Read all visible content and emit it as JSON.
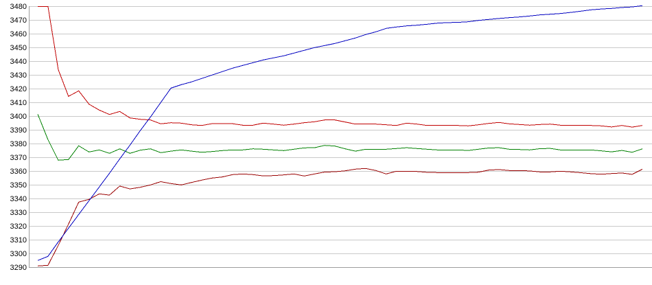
{
  "chart_data": {
    "type": "line",
    "title": "",
    "xlabel": "",
    "ylabel": "",
    "grid": true,
    "legend": false,
    "background_color": "#ffffff",
    "gridline_color": "#c9c9c9",
    "axis_color": "#9c9c9c",
    "y_axis": {
      "min": 3290,
      "max": 3480,
      "tick_step": 10,
      "tick_labels": [
        "3480",
        "3470",
        "3460",
        "3450",
        "3440",
        "3430",
        "3420",
        "3410",
        "3400",
        "3390",
        "3380",
        "3370",
        "3360",
        "3350",
        "3340",
        "3330",
        "3320",
        "3310",
        "3300",
        "3290"
      ]
    },
    "x_axis": {
      "tick_labels": [],
      "points_per_series": 60
    },
    "series": [
      {
        "name": "red-line",
        "color": "#c00000",
        "values": [
          3480,
          3480,
          3434,
          3414.5,
          3418.5,
          3408.8,
          3404.5,
          3401.3,
          3403.5,
          3398.8,
          3397.8,
          3397.3,
          3394.5,
          3395.3,
          3395,
          3393.8,
          3393.3,
          3394.6,
          3394.6,
          3394.6,
          3393.5,
          3393.5,
          3395,
          3394.3,
          3393.5,
          3394.3,
          3395.3,
          3396,
          3397.3,
          3397.3,
          3395.8,
          3394.3,
          3394.3,
          3394.3,
          3393.8,
          3393.3,
          3395,
          3394.3,
          3393.3,
          3393.3,
          3393.3,
          3393.3,
          3393,
          3393.8,
          3394.8,
          3395.5,
          3394.5,
          3394,
          3393.5,
          3394,
          3394.3,
          3393.5,
          3393.3,
          3393.3,
          3393.3,
          3393,
          3392.2,
          3393.3,
          3392.1,
          3393.3
        ]
      },
      {
        "name": "dark-red-line",
        "color": "#990000",
        "values": [
          3291,
          3291.5,
          3306,
          3321.5,
          3337.5,
          3339.5,
          3343.5,
          3342.6,
          3349.2,
          3347.1,
          3348.3,
          3350,
          3352.4,
          3351,
          3350,
          3351.8,
          3353.5,
          3355,
          3355.8,
          3357.5,
          3358,
          3357.5,
          3356.6,
          3356.8,
          3357.3,
          3358,
          3356.5,
          3358,
          3359.4,
          3359.6,
          3360.3,
          3361.5,
          3362,
          3360.5,
          3358,
          3360,
          3360,
          3359.8,
          3359.2,
          3359,
          3359,
          3359,
          3359,
          3359.3,
          3360.8,
          3361.2,
          3360.5,
          3360.5,
          3360.2,
          3359.5,
          3359.5,
          3360,
          3359.5,
          3358.9,
          3358.2,
          3357.8,
          3358.3,
          3358.7,
          3357.7,
          3361.5
        ]
      },
      {
        "name": "green-line",
        "color": "#008000",
        "values": [
          3401.5,
          3383,
          3368,
          3368.5,
          3378.5,
          3374,
          3375.5,
          3373,
          3376.3,
          3373,
          3375.3,
          3376.3,
          3373.5,
          3374.6,
          3375.5,
          3374.6,
          3373.8,
          3374.3,
          3375,
          3375.5,
          3375.5,
          3376.3,
          3376,
          3375.5,
          3375,
          3376,
          3377,
          3377.1,
          3378.8,
          3378.3,
          3376.3,
          3374.6,
          3376,
          3376,
          3376,
          3376.5,
          3377.1,
          3376.5,
          3376,
          3375.5,
          3375.5,
          3375.5,
          3375.1,
          3376,
          3376.9,
          3377.1,
          3376,
          3375.8,
          3375.5,
          3376.4,
          3376.6,
          3375.5,
          3375.5,
          3375.5,
          3375.5,
          3374.8,
          3374.1,
          3375.1,
          3373.8,
          3376.3
        ]
      },
      {
        "name": "blue-line",
        "color": "#0000c0",
        "values": [
          3295,
          3298,
          3308.5,
          3318.5,
          3328.5,
          3338.5,
          3348.5,
          3358.5,
          3369,
          3379,
          3389.5,
          3399.5,
          3410,
          3420.5,
          3423,
          3425,
          3427.5,
          3430,
          3432.5,
          3435,
          3437,
          3439,
          3441,
          3442.5,
          3444,
          3446,
          3448,
          3450,
          3451.5,
          3453,
          3455,
          3457,
          3459.5,
          3461.5,
          3464,
          3465,
          3465.8,
          3466.3,
          3467,
          3467.8,
          3468.2,
          3468.4,
          3468.8,
          3469.8,
          3470.5,
          3471.2,
          3471.8,
          3472.3,
          3473,
          3473.8,
          3474.3,
          3474.8,
          3475.6,
          3476.5,
          3477.5,
          3478.1,
          3478.5,
          3479.2,
          3479.6,
          3480.5
        ]
      }
    ]
  }
}
